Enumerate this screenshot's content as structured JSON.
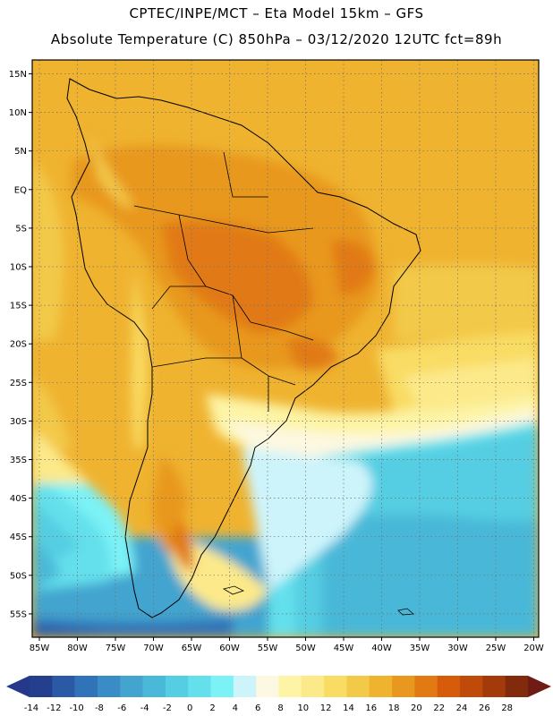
{
  "title_line1": "CPTEC/INPE/MCT –  Eta Model 15km – GFS",
  "title_line2": "Absolute Temperature (C) 850hPa – 03/12/2020 12UTC fct=89h",
  "lat_labels": [
    "15N",
    "10N",
    "5N",
    "EQ",
    "5S",
    "10S",
    "15S",
    "20S",
    "25S",
    "30S",
    "35S",
    "40S",
    "45S",
    "50S",
    "55S"
  ],
  "lon_labels": [
    "85W",
    "80W",
    "75W",
    "70W",
    "65W",
    "60W",
    "55W",
    "50W",
    "45W",
    "40W",
    "35W",
    "30W",
    "25W",
    "20W"
  ],
  "colorbar": {
    "tick_labels": [
      "-14",
      "-12",
      "-10",
      "-8",
      "-6",
      "-4",
      "-2",
      "0",
      "2",
      "4",
      "6",
      "8",
      "10",
      "12",
      "14",
      "16",
      "18",
      "20",
      "22",
      "24",
      "26",
      "28"
    ],
    "colors": [
      "#243f8e",
      "#2a5aa6",
      "#3173b8",
      "#3a8cc6",
      "#43a4cf",
      "#4ab8d8",
      "#55cde2",
      "#64e0ec",
      "#7cf2f6",
      "#cdf4fb",
      "#fdf8e1",
      "#fdf4a6",
      "#fce98a",
      "#f9dc64",
      "#f3c94a",
      "#efb330",
      "#e8981e",
      "#e17a13",
      "#d65c0c",
      "#c04a0a",
      "#a23a0a",
      "#822a0c"
    ],
    "left_arrow_color": "#26388a",
    "right_arrow_color": "#6e1c14"
  }
}
